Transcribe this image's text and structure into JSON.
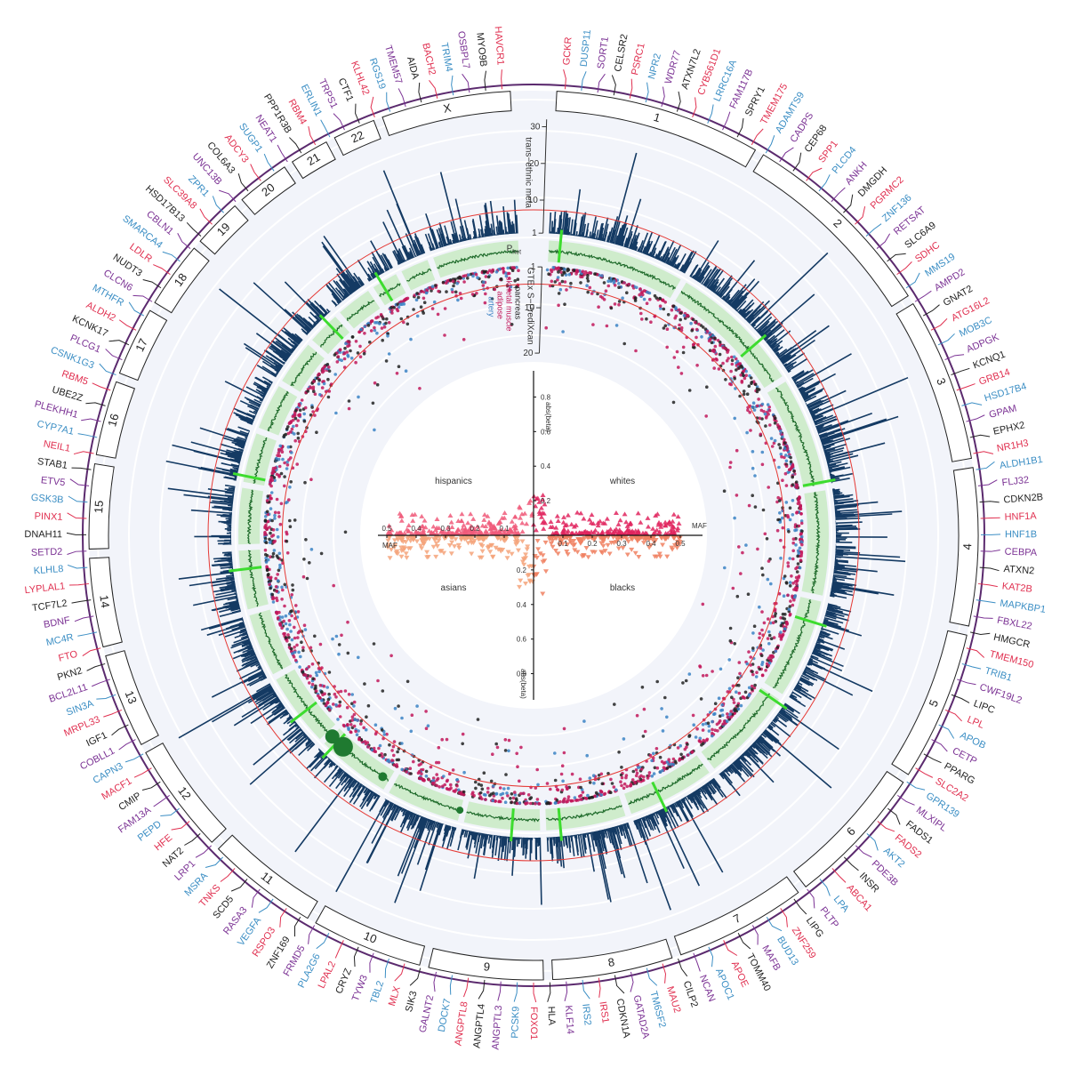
{
  "chart_data": {
    "type": "scatter",
    "chromosomes": [
      "1",
      "2",
      "3",
      "4",
      "5",
      "6",
      "7",
      "8",
      "9",
      "10",
      "11",
      "12",
      "13",
      "14",
      "15",
      "16",
      "17",
      "18",
      "19",
      "20",
      "21",
      "22",
      "X"
    ],
    "chromosome_rel_lengths": [
      249,
      243,
      198,
      190,
      181,
      171,
      159,
      145,
      138,
      134,
      135,
      133,
      114,
      107,
      102,
      90,
      83,
      80,
      59,
      64,
      47,
      51,
      156
    ],
    "tracks": {
      "trans_ethnic_meta": {
        "label": "trans−ethnic meta",
        "y_ticks": [
          "1",
          "10",
          "20",
          "30"
        ],
        "ylim": [
          1,
          32
        ],
        "threshold": 7.3,
        "color": "#143a63"
      },
      "p_het": {
        "label": "P",
        "subscript": "het",
        "color": "#2e8b3e"
      },
      "gtex_sprediscan": {
        "label": "GTEx S−PrediXcan",
        "y_ticks": [
          "1",
          "10",
          "20"
        ],
        "ylim": [
          1,
          20
        ],
        "legend": [
          {
            "name": "pancreas",
            "color": "#222222"
          },
          {
            "name": "skeletal muscle",
            "color": "#c2185b"
          },
          {
            "name": "adipose",
            "color": "#c2185b"
          },
          {
            "name": "artery",
            "color": "#3b82c4"
          }
        ]
      }
    },
    "center_plot": {
      "y_ticks_up": [
        "0.2",
        "0.4",
        "0.6",
        "0.8"
      ],
      "y_ticks_down": [
        "0.2",
        "0.4",
        "0.6",
        "0.8"
      ],
      "x_ticks": [
        "0.1",
        "0.2",
        "0.3",
        "0.4",
        "0.5"
      ],
      "x_label": "MAF",
      "y_label_up": "abs(beta)",
      "y_label_down": "abs(beta)",
      "quadrants": [
        "whites",
        "hispanics",
        "asians",
        "blacks"
      ],
      "upper_color": "#e0245e",
      "lower_color": "#f08060"
    },
    "gene_colors": [
      "#e03050",
      "#3b8ec4",
      "#7b3294",
      "#222222"
    ],
    "genes": [
      "GCKR",
      "DUSP11",
      "SORT1",
      "CELSR2",
      "PSRC1",
      "NPR2",
      "WDR77",
      "ATXN7L2",
      "CYB561D1",
      "LRRC16A",
      "FAM117B",
      "SPRY1",
      "TMEM175",
      "ADAMTS9",
      "CADPS",
      "CEP68",
      "SPP1",
      "PLCD4",
      "ANKH",
      "DMGDH",
      "PGRMC2",
      "ZNF136",
      "RETSAT",
      "SLC6A9",
      "SDHC",
      "MMS19",
      "AMPD2",
      "GNAT2",
      "ATG16L2",
      "MOB3C",
      "ADPGK",
      "KCNQ1",
      "GRB14",
      "HSD17B4",
      "GPAM",
      "EPHX2",
      "NR1H3",
      "ALDH1B1",
      "FLJ32",
      "CDKN2B",
      "HNF1A",
      "HNF1B",
      "CEBPA",
      "ATXN2",
      "KAT2B",
      "MAPKBP1",
      "FBXL22",
      "HMGCR",
      "TMEM150",
      "TRIB1",
      "CWF19L2",
      "LIPC",
      "LPL",
      "APOB",
      "CETP",
      "PPARG",
      "SLC2A2",
      "GPR139",
      "MLXIPL",
      "FADS1",
      "FADS2",
      "AKT2",
      "PDE3B",
      "INSR",
      "ABCA1",
      "LPA",
      "PLTP",
      "LIPG",
      "ZNF259",
      "BUD13",
      "MAFB",
      "TOMM40",
      "APOE",
      "APOC1",
      "NCAN",
      "CILP2",
      "MAU2",
      "TM6SF2",
      "GATAD2A",
      "CDKN1A",
      "IRS1",
      "IRS2",
      "KLF14",
      "HLA",
      "FOXO1",
      "PCSK9",
      "ANGPTL3",
      "ANGPTL4",
      "ANGPTL8",
      "DOCK7",
      "GALNT2",
      "SIK3",
      "MLX",
      "TBL2",
      "TYW3",
      "CRYZ",
      "LPAL2",
      "PLA2G6",
      "FRMD5",
      "ZNF169",
      "RSPO3",
      "VEGFA",
      "RASA3",
      "SCD5",
      "TNKS",
      "MSRA",
      "LRP1",
      "NAT2",
      "HFE",
      "PEPD",
      "FAM13A",
      "CMIP",
      "MACF1",
      "CAPN3",
      "COBLL1",
      "IGF1",
      "MRPL33",
      "SIN3A",
      "BCL2L11",
      "PKN2",
      "FTO",
      "MC4R",
      "BDNF",
      "TCF7L2",
      "LYPLAL1",
      "KLHL8",
      "SETD2",
      "DNAH11",
      "PINX1",
      "GSK3B",
      "ETV5",
      "STAB1",
      "NEIL1",
      "CYP7A1",
      "PLEKHH1",
      "UBE2Z",
      "RBM5",
      "CSNK1G3",
      "PLCG1",
      "KCNK17",
      "ALDH2",
      "MTHFR",
      "CLCN6",
      "NUDT3",
      "LDLR",
      "SMARCA4",
      "CBLN1",
      "HSD17B13",
      "SLC39A8",
      "ZPR1",
      "UNC13B",
      "COL6A3",
      "ADCY3",
      "SUGP1",
      "NEAT1",
      "PPP1R3B",
      "RBM4",
      "ERLIN1",
      "TRPS1",
      "CTF1",
      "KLHL42",
      "RGS19",
      "TMEM57",
      "AIDA",
      "BACH2",
      "TRIM4",
      "OSBPL7",
      "MYO9B",
      "HAVCR1"
    ]
  }
}
